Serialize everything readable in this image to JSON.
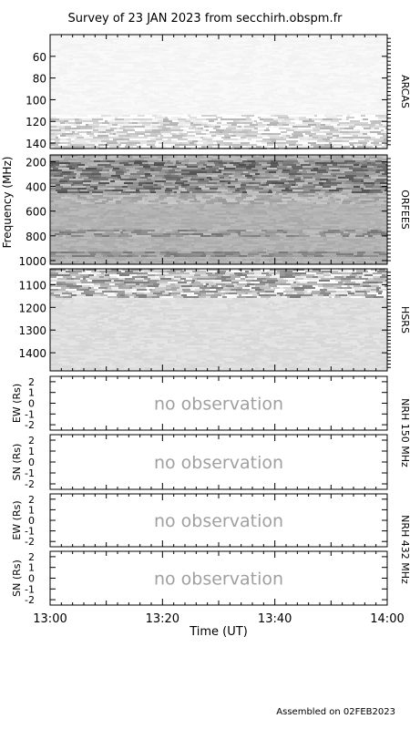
{
  "title": "Survey of 23 JAN 2023 from secchirh.obspm.fr",
  "footer": "Assembled on 02FEB2023",
  "chart_data": {
    "type": "heatmap",
    "xlabel": "Time (UT)",
    "x_ticks": [
      "13:00",
      "13:20",
      "13:40",
      "14:00"
    ],
    "spectrograms": {
      "ylabel": "Frequency (MHz)",
      "panels": [
        {
          "name": "ARCAS",
          "ylim": [
            40,
            145
          ],
          "ticks": [
            60,
            80,
            100,
            120,
            140
          ]
        },
        {
          "name": "ORFEES",
          "ylim": [
            145,
            1030
          ],
          "ticks": [
            200,
            400,
            600,
            800,
            1000
          ]
        },
        {
          "name": "HSRS",
          "ylim": [
            1030,
            1480
          ],
          "ticks": [
            1100,
            1200,
            1300,
            1400
          ]
        }
      ]
    },
    "imaging": {
      "panels": [
        {
          "ylabel": "EW (Rs)",
          "status": "no observation"
        },
        {
          "ylabel": "SN (Rs)",
          "status": "no observation"
        },
        {
          "ylabel": "EW (Rs)",
          "status": "no observation"
        },
        {
          "ylabel": "SN (Rs)",
          "status": "no observation"
        }
      ],
      "ylim": [
        -2.5,
        2.5
      ],
      "ticks": [
        2,
        1,
        0,
        -1,
        -2
      ],
      "group_labels": [
        "NRH 150 MHz",
        "NRH 432 MHz"
      ]
    }
  }
}
